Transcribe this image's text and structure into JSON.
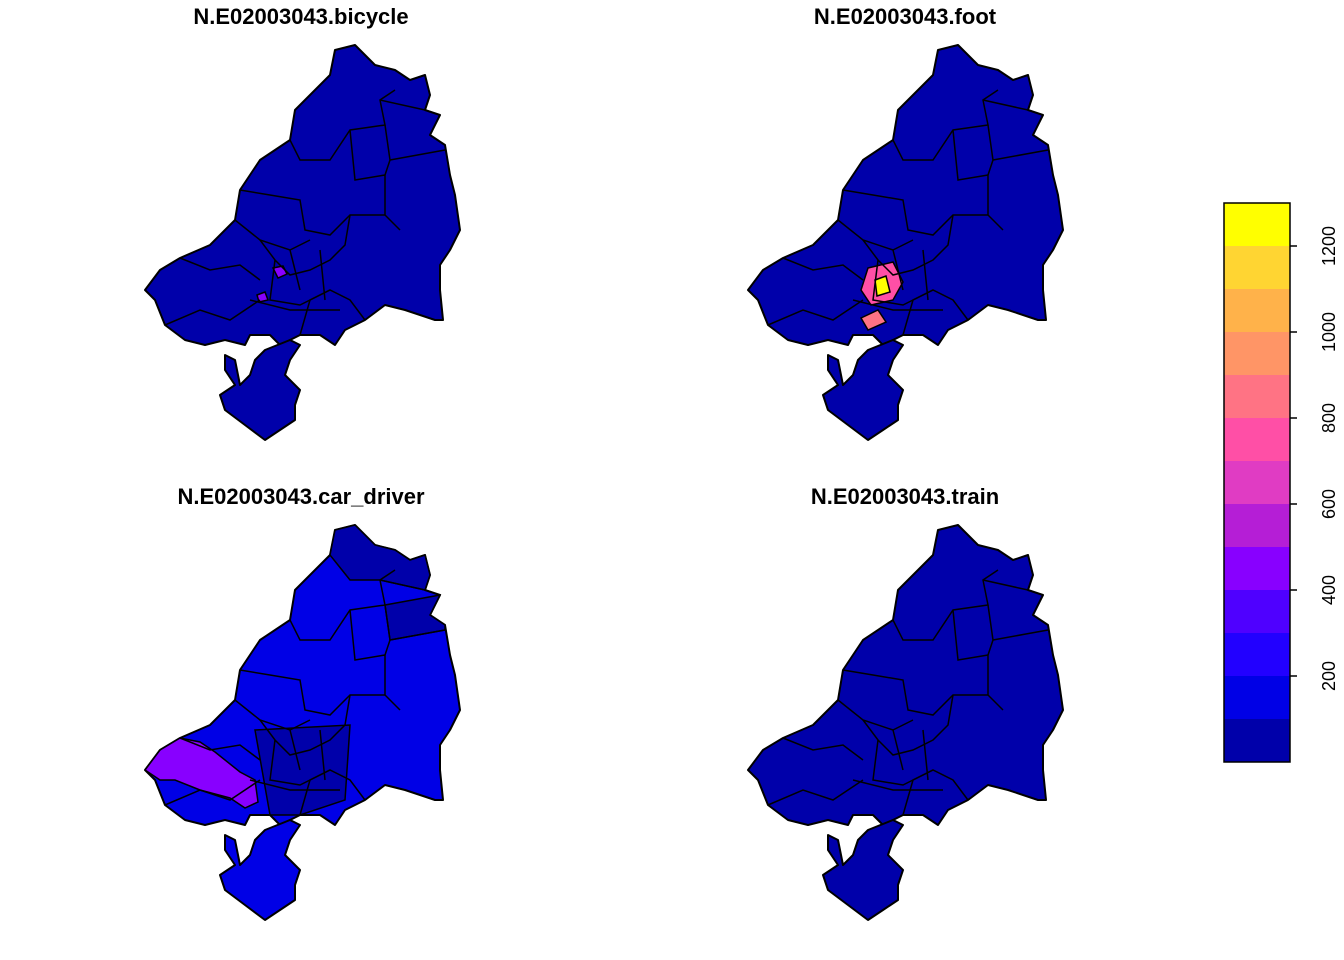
{
  "maps": [
    {
      "title": "N.E02003043.bicycle"
    },
    {
      "title": "N.E02003043.foot"
    },
    {
      "title": "N.E02003043.car_driver"
    },
    {
      "title": "N.E02003043.train"
    }
  ],
  "legend": {
    "lim": [
      0,
      1300
    ],
    "breaks": [
      0,
      100,
      200,
      300,
      400,
      500,
      600,
      700,
      800,
      900,
      1000,
      1100,
      1200,
      1300
    ],
    "colors": [
      "#0000aa",
      "#0000e6",
      "#2200ff",
      "#4f00ff",
      "#8800ff",
      "#b51ed6",
      "#e03cc3",
      "#ff4fa6",
      "#ff7384",
      "#ff9566",
      "#ffb24a",
      "#ffd532",
      "#ffff00"
    ],
    "ticks": [
      200,
      400,
      600,
      800,
      1000,
      1200
    ]
  }
}
